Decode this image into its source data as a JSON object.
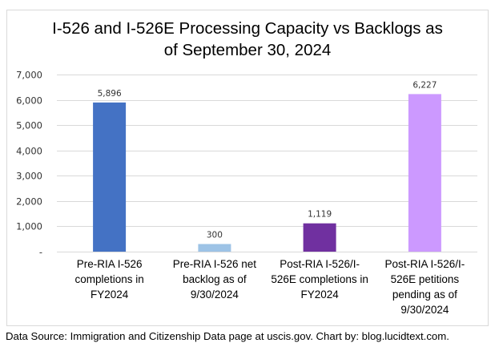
{
  "chart_data": {
    "type": "bar",
    "title_lines": [
      "I-526 and I-526E Processing Capacity vs Backlogs as",
      "of September 30, 2024"
    ],
    "categories": [
      [
        "Pre-RIA I-526",
        "completions in",
        "FY2024"
      ],
      [
        "Pre-RIA I-526 net",
        "backlog as of",
        "9/30/2024"
      ],
      [
        "Post-RIA I-526/I-",
        "526E completions in",
        "FY2024"
      ],
      [
        "Post-RIA I-526/I-",
        "526E petitions",
        "pending as of",
        "9/30/2024"
      ]
    ],
    "values": [
      5896,
      300,
      1119,
      6227
    ],
    "data_labels": [
      "5,896",
      "300",
      "1,119",
      "6,227"
    ],
    "colors": [
      "#4472C4",
      "#9DC3E6",
      "#7030A0",
      "#CC99FF"
    ],
    "ylim": [
      0,
      7000
    ],
    "yticks": [
      0,
      1000,
      2000,
      3000,
      4000,
      5000,
      6000,
      7000
    ],
    "ytick_labels": [
      "-",
      "1,000",
      "2,000",
      "3,000",
      "4,000",
      "5,000",
      "6,000",
      "7,000"
    ],
    "grid": true,
    "gridline_color": "#d9d9d9",
    "xlabel": "",
    "ylabel": "",
    "legend": "none"
  },
  "footer": "Data Source: Immigration and Citizenship Data page at uscis.gov. Chart by: blog.lucidtext.com."
}
